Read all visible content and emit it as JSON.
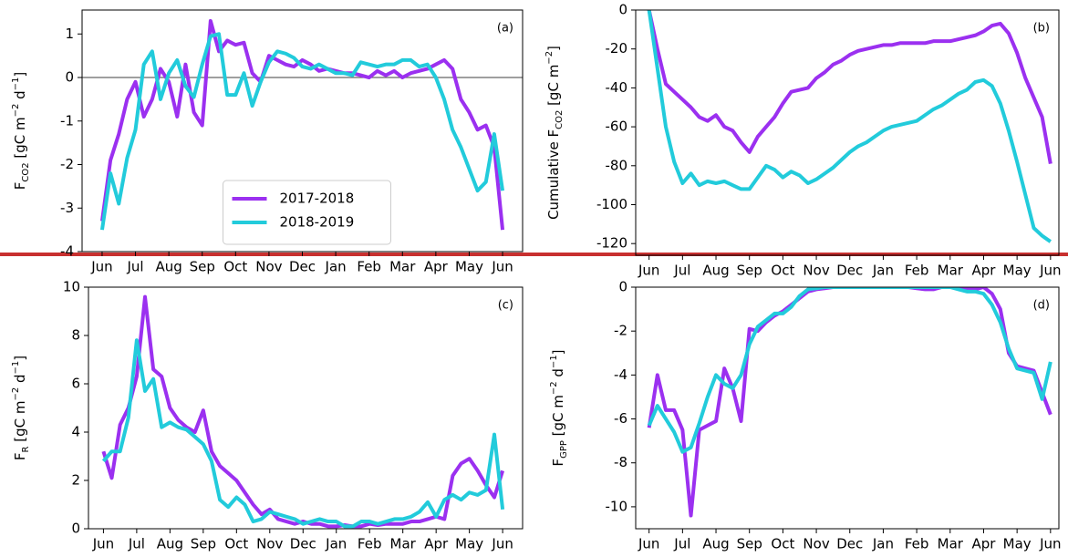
{
  "chart_data": [
    {
      "type": "line",
      "panel_label": "(a)",
      "ylabel": [
        "F",
        {
          "sub": "CO2"
        },
        " [gC m",
        {
          "sup": "−2"
        },
        " d",
        {
          "sup": "−1"
        },
        "]"
      ],
      "x": [
        0,
        0.25,
        0.5,
        0.75,
        1,
        1.25,
        1.5,
        1.75,
        2,
        2.25,
        2.5,
        2.75,
        3,
        3.25,
        3.5,
        3.75,
        4,
        4.25,
        4.5,
        4.75,
        5,
        5.25,
        5.5,
        5.75,
        6,
        6.25,
        6.5,
        6.75,
        7,
        7.25,
        7.5,
        7.75,
        8,
        8.25,
        8.5,
        8.75,
        9,
        9.25,
        9.5,
        9.75,
        10,
        10.25,
        10.5,
        10.75,
        11,
        11.25,
        11.5,
        11.75,
        12
      ],
      "xlim": [
        -0.6,
        12.6
      ],
      "xticks": [
        {
          "value": 0,
          "label": "Jun"
        },
        {
          "value": 1,
          "label": "Jul"
        },
        {
          "value": 2,
          "label": "Aug"
        },
        {
          "value": 3,
          "label": "Sep"
        },
        {
          "value": 4,
          "label": "Oct"
        },
        {
          "value": 5,
          "label": "Nov"
        },
        {
          "value": 6,
          "label": "Dec"
        },
        {
          "value": 7,
          "label": "Jan"
        },
        {
          "value": 8,
          "label": "Feb"
        },
        {
          "value": 9,
          "label": "Mar"
        },
        {
          "value": 10,
          "label": "Apr"
        },
        {
          "value": 11,
          "label": "May"
        },
        {
          "value": 12,
          "label": "Jun"
        }
      ],
      "ylim": [
        -4,
        1.55
      ],
      "yticks": [
        -4,
        -3,
        -2,
        -1,
        0,
        1
      ],
      "zero_line": true,
      "legend": "lower center",
      "series": [
        {
          "name": "2017-2018",
          "color": "#9b30f0",
          "values": [
            -3.3,
            -1.9,
            -1.3,
            -0.5,
            -0.1,
            -0.9,
            -0.5,
            0.2,
            -0.1,
            -0.9,
            0.3,
            -0.8,
            -1.1,
            1.3,
            0.6,
            0.85,
            0.75,
            0.8,
            0.1,
            -0.1,
            0.5,
            0.4,
            0.3,
            0.25,
            0.4,
            0.3,
            0.15,
            0.2,
            0.15,
            0.1,
            0.1,
            0.05,
            0,
            0.15,
            0.05,
            0.15,
            0,
            0.1,
            0.15,
            0.2,
            0.3,
            0.4,
            0.2,
            -0.5,
            -0.8,
            -1.2,
            -1.1,
            -1.6,
            -3.5
          ]
        },
        {
          "name": "2018-2019",
          "color": "#22cbdb",
          "values": [
            -3.5,
            -2.2,
            -2.9,
            -1.85,
            -1.2,
            0.3,
            0.6,
            -0.5,
            0.1,
            0.4,
            -0.2,
            -0.45,
            0.3,
            0.95,
            1.0,
            -0.4,
            -0.4,
            0.1,
            -0.65,
            -0.1,
            0.35,
            0.6,
            0.55,
            0.45,
            0.25,
            0.2,
            0.3,
            0.2,
            0.1,
            0.1,
            0.05,
            0.35,
            0.3,
            0.25,
            0.3,
            0.3,
            0.4,
            0.4,
            0.25,
            0.3,
            0,
            -0.5,
            -1.2,
            -1.6,
            -2.1,
            -2.6,
            -2.4,
            -1.3,
            -2.6
          ]
        }
      ]
    },
    {
      "type": "line",
      "panel_label": "(b)",
      "ylabel": [
        "Cumulative F",
        {
          "sub": "CO2"
        },
        " [gC m",
        {
          "sup": "−2"
        },
        "]"
      ],
      "x": [
        0,
        0.25,
        0.5,
        0.75,
        1,
        1.25,
        1.5,
        1.75,
        2,
        2.25,
        2.5,
        2.75,
        3,
        3.25,
        3.5,
        3.75,
        4,
        4.25,
        4.5,
        4.75,
        5,
        5.25,
        5.5,
        5.75,
        6,
        6.25,
        6.5,
        6.75,
        7,
        7.25,
        7.5,
        7.75,
        8,
        8.25,
        8.5,
        8.75,
        9,
        9.25,
        9.5,
        9.75,
        10,
        10.25,
        10.5,
        10.75,
        11,
        11.25,
        11.5,
        11.75,
        12
      ],
      "xlim": [
        -0.4,
        12.25
      ],
      "xticks": [
        {
          "value": 0,
          "label": "Jun"
        },
        {
          "value": 1,
          "label": "Jul"
        },
        {
          "value": 2,
          "label": "Aug"
        },
        {
          "value": 3,
          "label": "Sep"
        },
        {
          "value": 4,
          "label": "Oct"
        },
        {
          "value": 5,
          "label": "Nov"
        },
        {
          "value": 6,
          "label": "Dec"
        },
        {
          "value": 7,
          "label": "Jan"
        },
        {
          "value": 8,
          "label": "Feb"
        },
        {
          "value": 9,
          "label": "Mar"
        },
        {
          "value": 10,
          "label": "Apr"
        },
        {
          "value": 11,
          "label": "May"
        },
        {
          "value": 12,
          "label": "Jun"
        }
      ],
      "ylim": [
        -126,
        0
      ],
      "yticks": [
        -120,
        -100,
        -80,
        -60,
        -40,
        -20,
        0
      ],
      "series": [
        {
          "color": "#9b30f0",
          "values": [
            0,
            -20,
            -38,
            -42,
            -46,
            -50,
            -55,
            -57,
            -54,
            -60,
            -62,
            -68,
            -73,
            -65,
            -60,
            -55,
            -48,
            -42,
            -41,
            -40,
            -35,
            -32,
            -28,
            -26,
            -23,
            -21,
            -20,
            -19,
            -18,
            -18,
            -17,
            -17,
            -17,
            -17,
            -16,
            -16,
            -16,
            -15,
            -14,
            -13,
            -11,
            -8,
            -7,
            -12,
            -22,
            -35,
            -45,
            -55,
            -79
          ]
        },
        {
          "color": "#22cbdb",
          "values": [
            0,
            -30,
            -60,
            -78,
            -89,
            -84,
            -90,
            -88,
            -89,
            -88,
            -90,
            -92,
            -92,
            -86,
            -80,
            -82,
            -86,
            -83,
            -85,
            -89,
            -87,
            -84,
            -81,
            -77,
            -73,
            -70,
            -68,
            -65,
            -62,
            -60,
            -59,
            -58,
            -57,
            -54,
            -51,
            -49,
            -46,
            -43,
            -41,
            -37,
            -36,
            -39,
            -48,
            -62,
            -78,
            -95,
            -112,
            -116,
            -119
          ]
        }
      ]
    },
    {
      "type": "line",
      "panel_label": "(c)",
      "ylabel": [
        "F",
        {
          "sub": "R"
        },
        " [gC m",
        {
          "sup": "−2"
        },
        " d",
        {
          "sup": "−1"
        },
        "]"
      ],
      "x": [
        0,
        0.25,
        0.5,
        0.75,
        1,
        1.25,
        1.5,
        1.75,
        2,
        2.25,
        2.5,
        2.75,
        3,
        3.25,
        3.5,
        3.75,
        4,
        4.25,
        4.5,
        4.75,
        5,
        5.25,
        5.5,
        5.75,
        6,
        6.25,
        6.5,
        6.75,
        7,
        7.25,
        7.5,
        7.75,
        8,
        8.25,
        8.5,
        8.75,
        9,
        9.25,
        9.5,
        9.75,
        10,
        10.25,
        10.5,
        10.75,
        11,
        11.25,
        11.5,
        11.75,
        12
      ],
      "xlim": [
        -0.45,
        12.6
      ],
      "xticks": [
        {
          "value": 0,
          "label": "Jun"
        },
        {
          "value": 1,
          "label": "Jul"
        },
        {
          "value": 2,
          "label": "Aug"
        },
        {
          "value": 3,
          "label": "Sep"
        },
        {
          "value": 4,
          "label": "Oct"
        },
        {
          "value": 5,
          "label": "Nov"
        },
        {
          "value": 6,
          "label": "Dec"
        },
        {
          "value": 7,
          "label": "Jan"
        },
        {
          "value": 8,
          "label": "Feb"
        },
        {
          "value": 9,
          "label": "Mar"
        },
        {
          "value": 10,
          "label": "Apr"
        },
        {
          "value": 11,
          "label": "May"
        },
        {
          "value": 12,
          "label": "Jun"
        }
      ],
      "ylim": [
        0,
        10
      ],
      "yticks": [
        0,
        2,
        4,
        6,
        8,
        10
      ],
      "series": [
        {
          "color": "#9b30f0",
          "values": [
            3.2,
            2.1,
            4.3,
            5.0,
            6.3,
            9.6,
            6.6,
            6.3,
            5.0,
            4.5,
            4.2,
            4.0,
            4.9,
            3.2,
            2.6,
            2.3,
            2.0,
            1.5,
            1.0,
            0.6,
            0.8,
            0.4,
            0.3,
            0.2,
            0.3,
            0.2,
            0.2,
            0.1,
            0.1,
            0.15,
            0.1,
            0.1,
            0.2,
            0.15,
            0.2,
            0.2,
            0.2,
            0.3,
            0.3,
            0.4,
            0.5,
            0.4,
            2.2,
            2.7,
            2.9,
            2.4,
            1.8,
            1.3,
            2.4
          ]
        },
        {
          "color": "#22cbdb",
          "values": [
            2.8,
            3.2,
            3.2,
            4.6,
            7.8,
            5.7,
            6.2,
            4.2,
            4.4,
            4.2,
            4.1,
            3.8,
            3.5,
            2.8,
            1.2,
            0.9,
            1.3,
            1.0,
            0.3,
            0.4,
            0.7,
            0.6,
            0.5,
            0.4,
            0.2,
            0.3,
            0.4,
            0.3,
            0.3,
            0.1,
            0.1,
            0.3,
            0.3,
            0.2,
            0.3,
            0.4,
            0.4,
            0.5,
            0.7,
            1.1,
            0.5,
            1.2,
            1.4,
            1.2,
            1.5,
            1.4,
            1.6,
            3.9,
            0.8
          ]
        }
      ]
    },
    {
      "type": "line",
      "panel_label": "(d)",
      "ylabel": [
        "F",
        {
          "sub": "GPP"
        },
        " [gC m",
        {
          "sup": "−2"
        },
        " d",
        {
          "sup": "−1"
        },
        "]"
      ],
      "x": [
        0,
        0.25,
        0.5,
        0.75,
        1,
        1.25,
        1.5,
        1.75,
        2,
        2.25,
        2.5,
        2.75,
        3,
        3.25,
        3.5,
        3.75,
        4,
        4.25,
        4.5,
        4.75,
        5,
        5.25,
        5.5,
        5.75,
        6,
        6.25,
        6.5,
        6.75,
        7,
        7.25,
        7.5,
        7.75,
        8,
        8.25,
        8.5,
        8.75,
        9,
        9.25,
        9.5,
        9.75,
        10,
        10.25,
        10.5,
        10.75,
        11,
        11.25,
        11.5,
        11.75,
        12
      ],
      "xlim": [
        -0.4,
        12.25
      ],
      "xticks": [
        {
          "value": 0,
          "label": "Jun"
        },
        {
          "value": 1,
          "label": "Jul"
        },
        {
          "value": 2,
          "label": "Aug"
        },
        {
          "value": 3,
          "label": "Sep"
        },
        {
          "value": 4,
          "label": "Oct"
        },
        {
          "value": 5,
          "label": "Nov"
        },
        {
          "value": 6,
          "label": "Dec"
        },
        {
          "value": 7,
          "label": "Jan"
        },
        {
          "value": 8,
          "label": "Feb"
        },
        {
          "value": 9,
          "label": "Mar"
        },
        {
          "value": 10,
          "label": "Apr"
        },
        {
          "value": 11,
          "label": "May"
        },
        {
          "value": 12,
          "label": "Jun"
        }
      ],
      "ylim": [
        -11,
        0
      ],
      "yticks": [
        -10,
        -8,
        -6,
        -4,
        -2,
        0
      ],
      "series": [
        {
          "color": "#9b30f0",
          "values": [
            -6.4,
            -4.0,
            -5.6,
            -5.6,
            -6.5,
            -10.4,
            -6.5,
            -6.3,
            -6.1,
            -3.7,
            -4.6,
            -6.1,
            -1.9,
            -2.0,
            -1.6,
            -1.3,
            -1.1,
            -0.8,
            -0.5,
            -0.2,
            -0.1,
            -0.05,
            0,
            0,
            0,
            0,
            0,
            0,
            0,
            0,
            0,
            0,
            -0.05,
            -0.1,
            -0.1,
            0,
            0,
            0,
            -0.05,
            -0.1,
            0,
            -0.3,
            -1.0,
            -3.0,
            -3.6,
            -3.7,
            -3.8,
            -4.8,
            -5.8
          ]
        },
        {
          "color": "#22cbdb",
          "values": [
            -6.3,
            -5.4,
            -6.0,
            -6.6,
            -7.5,
            -7.3,
            -6.2,
            -5.0,
            -4.0,
            -4.4,
            -4.6,
            -4.0,
            -2.6,
            -1.8,
            -1.5,
            -1.2,
            -1.2,
            -0.9,
            -0.4,
            -0.1,
            -0.05,
            0,
            0,
            0,
            0,
            0,
            0,
            0,
            0,
            0,
            0,
            0,
            0,
            0,
            0,
            0,
            0,
            -0.1,
            -0.2,
            -0.2,
            -0.3,
            -0.8,
            -1.6,
            -2.8,
            -3.7,
            -3.8,
            -3.9,
            -5.1,
            -3.4
          ]
        }
      ]
    }
  ]
}
